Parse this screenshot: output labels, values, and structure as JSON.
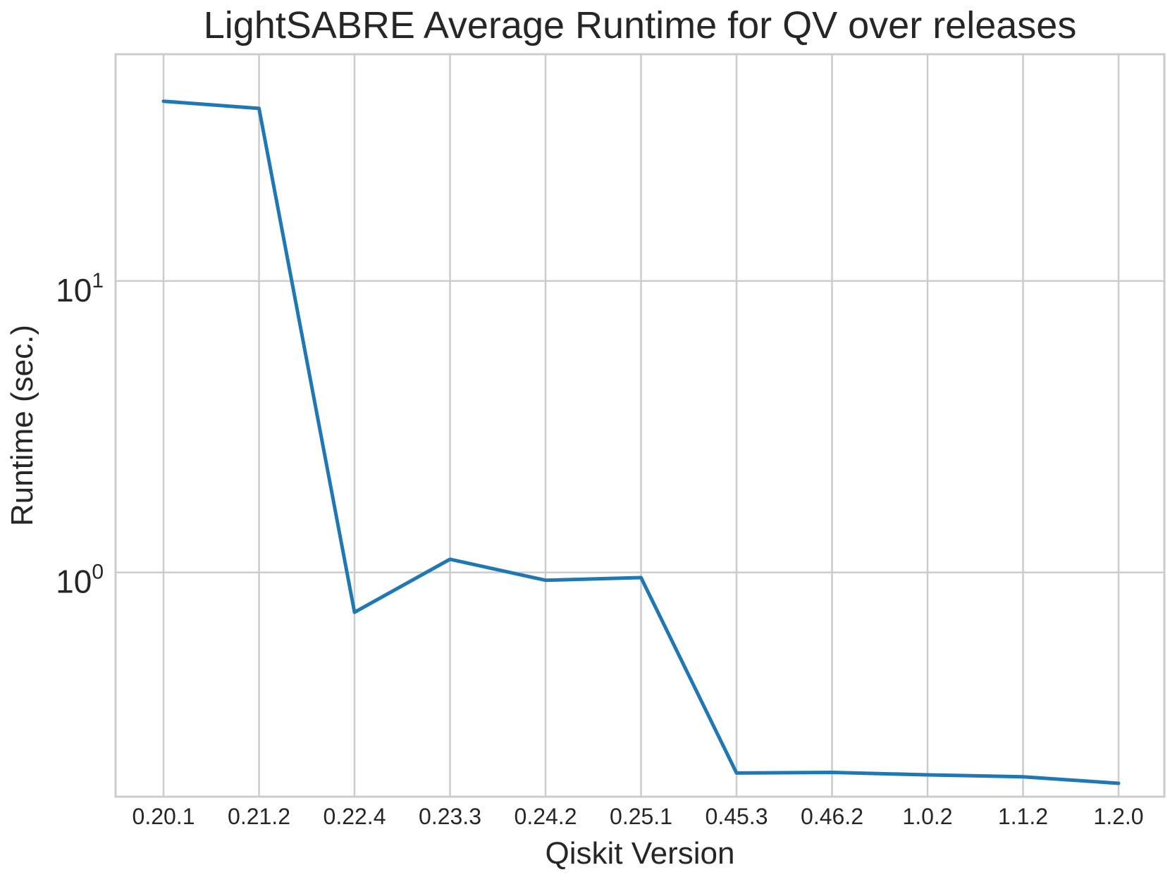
{
  "chart_data": {
    "type": "line",
    "title": "LightSABRE Average Runtime for QV over releases",
    "xlabel": "Qiskit Version",
    "ylabel": "Runtime (sec.)",
    "yscale": "log",
    "ylim": [
      0.17,
      60
    ],
    "grid": true,
    "categories": [
      "0.20.1",
      "0.21.2",
      "0.22.4",
      "0.23.3",
      "0.24.2",
      "0.25.1",
      "0.45.3",
      "0.46.2",
      "1.0.2",
      "1.1.2",
      "1.2.0"
    ],
    "yticks": [
      {
        "value": 1,
        "base": "10",
        "exp": "0"
      },
      {
        "value": 10,
        "base": "10",
        "exp": "1"
      }
    ],
    "series": [
      {
        "color": "#1f77b4",
        "values": [
          41.4,
          39.1,
          0.73,
          1.11,
          0.94,
          0.96,
          0.205,
          0.206,
          0.202,
          0.199,
          0.189
        ]
      }
    ]
  }
}
